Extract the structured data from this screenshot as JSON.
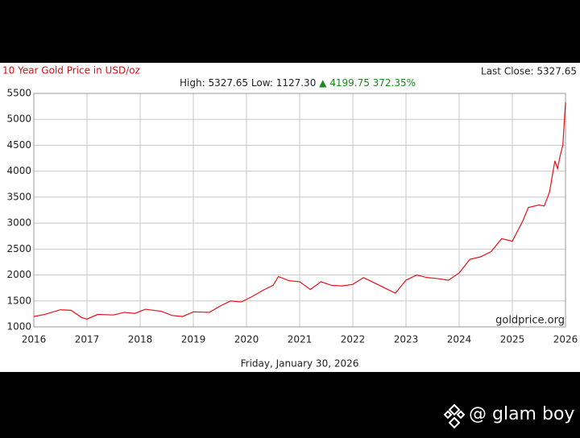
{
  "chart_data": {
    "type": "line",
    "title": "10 Year Gold Price in USD/oz",
    "stats": [
      "High: 5327.65 Low: 1127.30",
      "▲ 4199.75 372.35%"
    ],
    "last_close": "Last Close: 5327.65",
    "source": "goldprice.org",
    "date": "Friday, January 30, 2026",
    "series": [
      {
        "name": "Gold",
        "color": "#e8101a",
        "x": [
          2016.0,
          2016.2,
          2016.5,
          2016.7,
          2016.9,
          2017.0,
          2017.2,
          2017.5,
          2017.7,
          2017.9,
          2018.1,
          2018.4,
          2018.6,
          2018.8,
          2019.0,
          2019.3,
          2019.5,
          2019.7,
          2019.9,
          2020.1,
          2020.3,
          2020.5,
          2020.6,
          2020.8,
          2021.0,
          2021.2,
          2021.4,
          2021.6,
          2021.8,
          2022.0,
          2022.2,
          2022.4,
          2022.6,
          2022.8,
          2023.0,
          2023.2,
          2023.4,
          2023.6,
          2023.8,
          2024.0,
          2024.2,
          2024.4,
          2024.6,
          2024.8,
          2025.0,
          2025.2,
          2025.3,
          2025.5,
          2025.6,
          2025.7,
          2025.8,
          2025.85,
          2025.9,
          2025.95,
          2026.0
        ],
        "values": [
          1200,
          1240,
          1330,
          1320,
          1180,
          1150,
          1240,
          1230,
          1280,
          1260,
          1340,
          1300,
          1220,
          1200,
          1290,
          1280,
          1400,
          1500,
          1480,
          1580,
          1700,
          1800,
          1970,
          1890,
          1870,
          1720,
          1870,
          1800,
          1790,
          1820,
          1950,
          1850,
          1750,
          1650,
          1900,
          2000,
          1950,
          1930,
          1900,
          2040,
          2300,
          2350,
          2450,
          2700,
          2650,
          3050,
          3300,
          3350,
          3330,
          3600,
          4200,
          4050,
          4300,
          4500,
          5327.65
        ]
      }
    ],
    "xlim": [
      2016,
      2026
    ],
    "xticks": [
      2016,
      2017,
      2018,
      2019,
      2020,
      2021,
      2022,
      2023,
      2024,
      2025,
      2026
    ],
    "ylim": [
      1000,
      5500
    ],
    "yticks": [
      1000,
      1500,
      2000,
      2500,
      3000,
      3500,
      4000,
      4500,
      5000,
      5500
    ],
    "grid": true
  },
  "watermark": "@ glam boy"
}
